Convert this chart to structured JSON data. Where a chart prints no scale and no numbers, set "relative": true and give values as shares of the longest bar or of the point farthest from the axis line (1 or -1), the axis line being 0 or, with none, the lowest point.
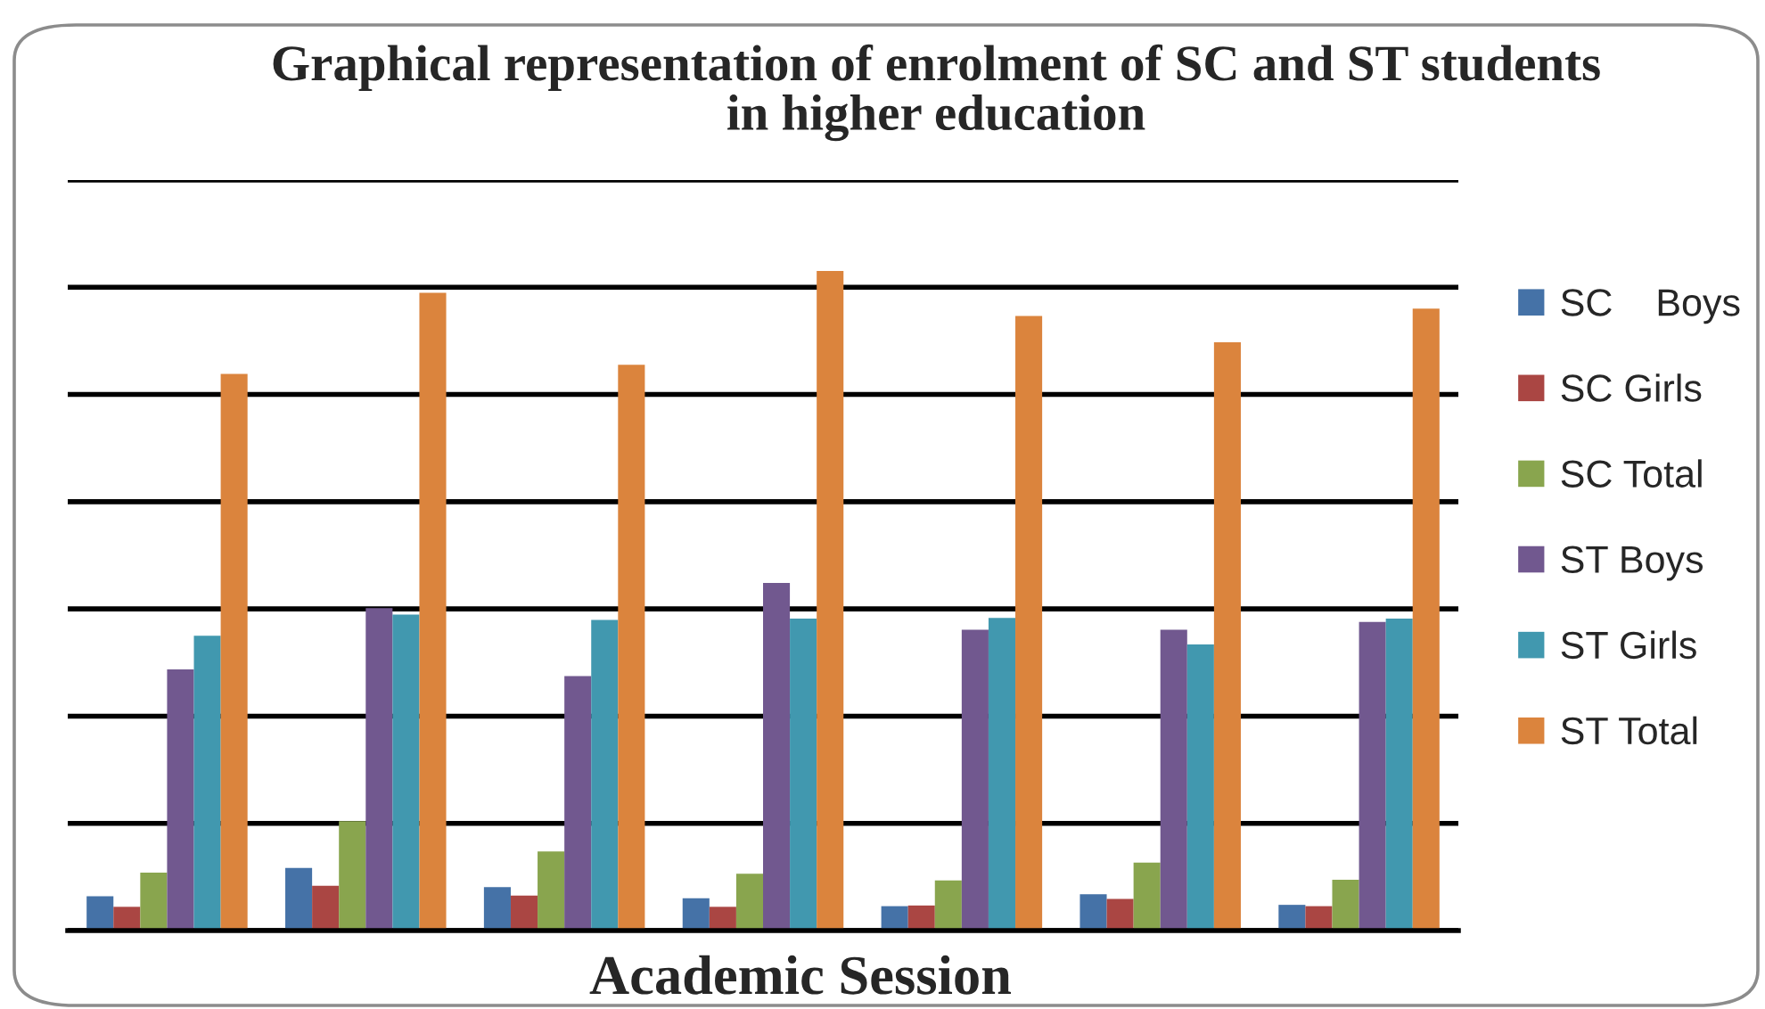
{
  "chart_data": {
    "type": "bar",
    "title": "Graphical representation of enrolment of SC and ST students\nin higher education",
    "xlabel": "Academic Session",
    "relative": true,
    "grid": "y",
    "legend": "right",
    "categories": [
      null,
      null,
      null,
      null,
      null,
      null,
      null
    ],
    "series": [
      {
        "name": "SC    Boys",
        "color": "#4572a7",
        "values": [
          0.052,
          0.095,
          0.066,
          0.049,
          0.037,
          0.055,
          0.039
        ]
      },
      {
        "name": "SC Girls",
        "color": "#aa4643",
        "values": [
          0.036,
          0.068,
          0.053,
          0.036,
          0.038,
          0.048,
          0.037
        ]
      },
      {
        "name": "SC Total",
        "color": "#89a54e",
        "values": [
          0.088,
          0.166,
          0.12,
          0.086,
          0.076,
          0.103,
          0.077
        ]
      },
      {
        "name": "ST Boys",
        "color": "#71588f",
        "values": [
          0.396,
          0.489,
          0.386,
          0.527,
          0.456,
          0.456,
          0.468
        ]
      },
      {
        "name": "ST Girls",
        "color": "#4198af",
        "values": [
          0.447,
          0.479,
          0.471,
          0.473,
          0.474,
          0.434,
          0.473
        ]
      },
      {
        "name": "ST Total",
        "color": "#db843d",
        "values": [
          0.844,
          0.967,
          0.858,
          1,
          0.932,
          0.892,
          0.943
        ]
      }
    ]
  }
}
